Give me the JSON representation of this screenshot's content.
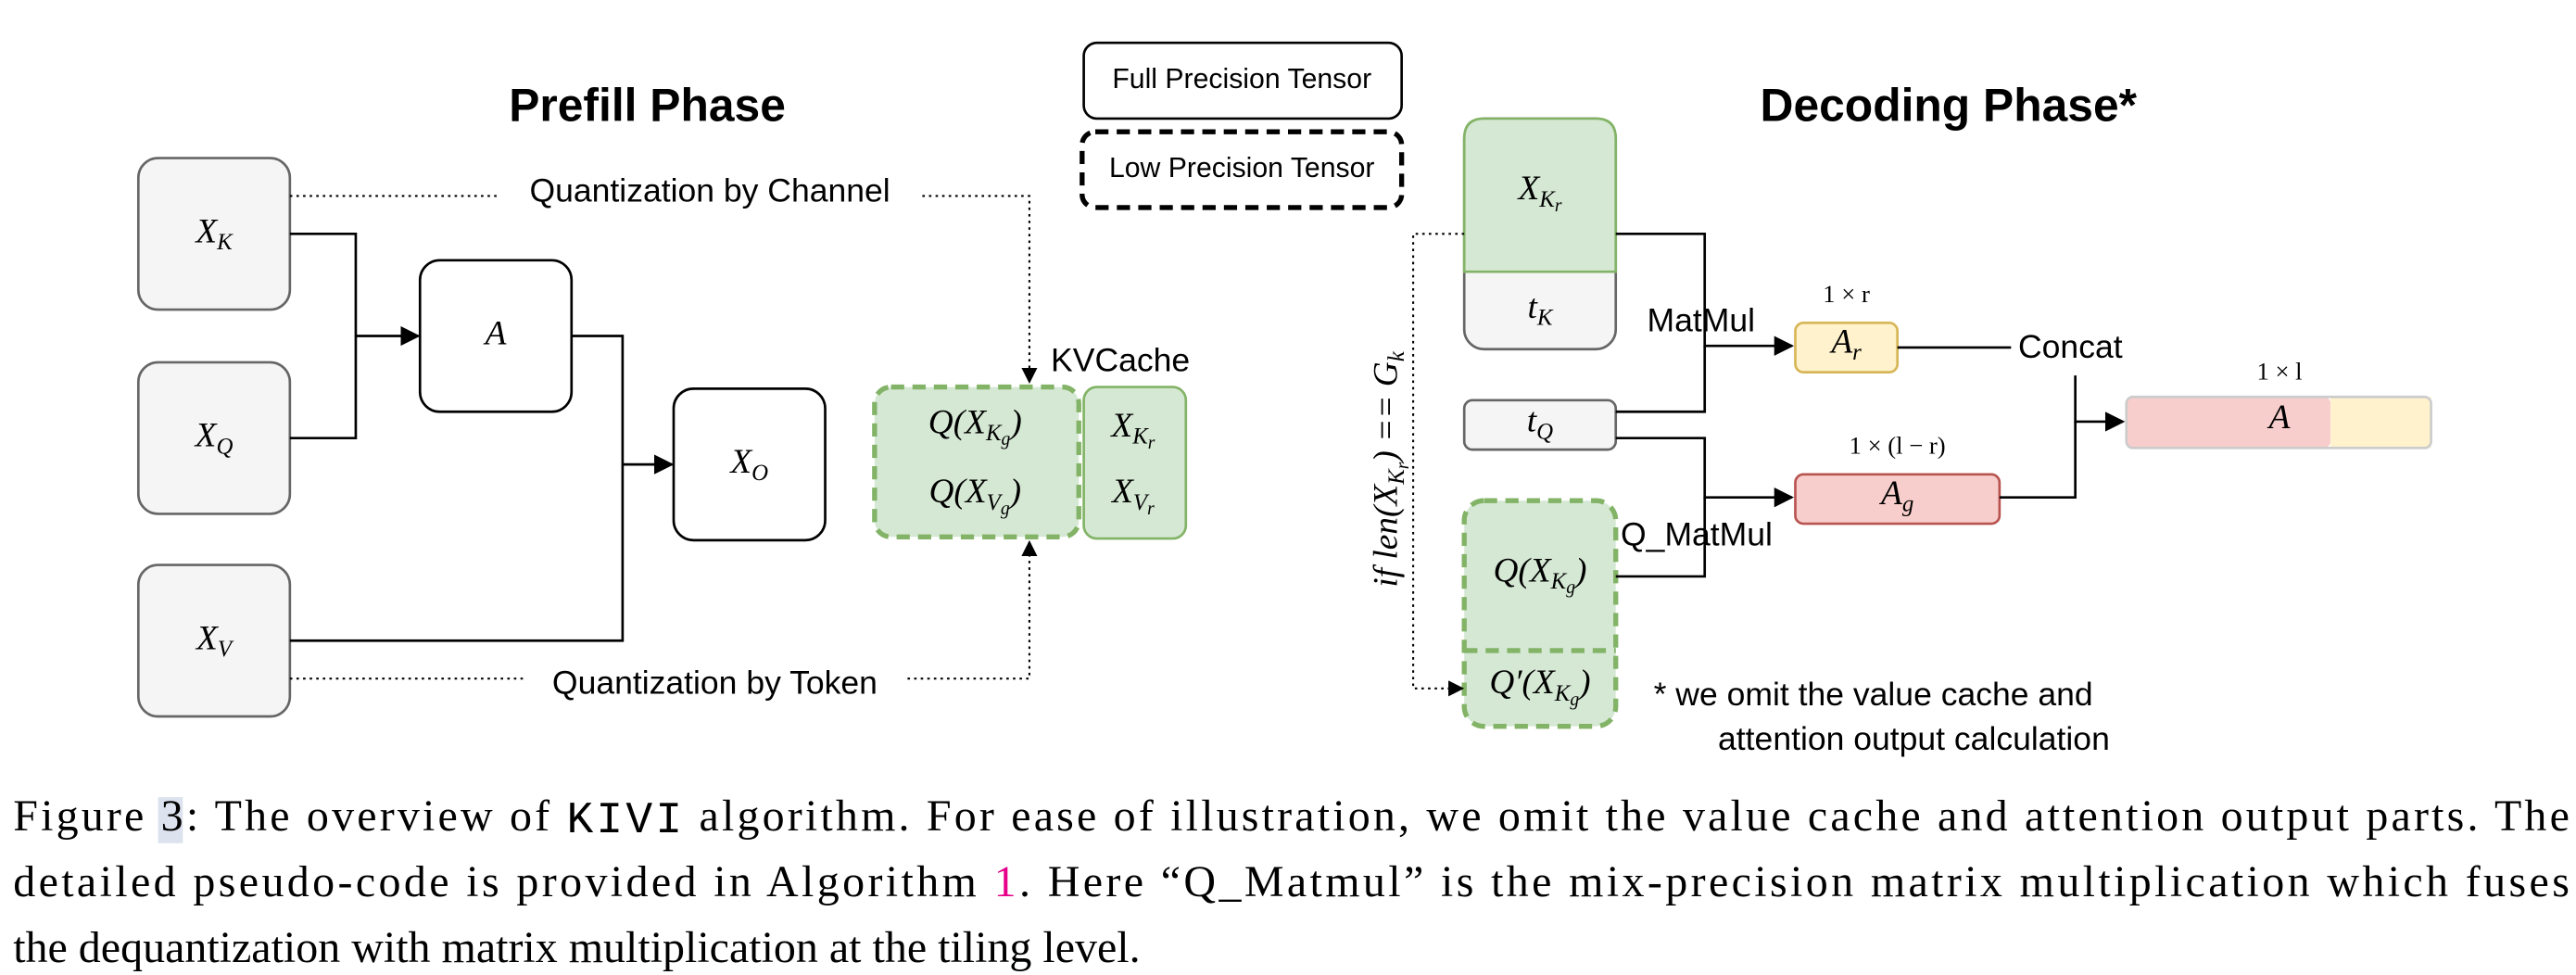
{
  "legend": {
    "full_precision": "Full Precision Tensor",
    "low_precision": "Low Precision Tensor"
  },
  "prefill": {
    "title": "Prefill Phase",
    "channel_label": "Quantization by Channel",
    "token_label": "Quantization by Token",
    "kvcache_label": "KVCache"
  },
  "decoding": {
    "title": "Decoding Phase*",
    "matmul_label": "MatMul",
    "q_matmul_label": "Q_MatMul",
    "concat_label": "Concat",
    "note": [
      "* we omit the value cache and",
      "attention output calculation"
    ]
  },
  "math": {
    "x_k": [
      {
        "text": "X"
      },
      {
        "sub": "K"
      }
    ],
    "x_q": [
      {
        "text": "X"
      },
      {
        "sub": "Q"
      }
    ],
    "x_v": [
      {
        "text": "X"
      },
      {
        "sub": "V"
      }
    ],
    "a_prefill": [
      {
        "text": "A"
      }
    ],
    "x_o": [
      {
        "text": "X"
      },
      {
        "sub": "O"
      }
    ],
    "cache_q_kg": [
      {
        "text": "Q(X"
      },
      {
        "sub": "K"
      },
      {
        "subsub": "g"
      },
      {
        "text": ")"
      }
    ],
    "cache_q_vg": [
      {
        "text": "Q(X"
      },
      {
        "sub": "V"
      },
      {
        "subsub": "g"
      },
      {
        "text": ")"
      }
    ],
    "cache_x_kr": [
      {
        "text": "X"
      },
      {
        "sub": "K"
      },
      {
        "subsub": "r"
      }
    ],
    "cache_x_vr": [
      {
        "text": "X"
      },
      {
        "sub": "V"
      },
      {
        "subsub": "r"
      }
    ],
    "dec_x_kr": [
      {
        "text": "X"
      },
      {
        "sub": "K"
      },
      {
        "subsub": "r"
      }
    ],
    "dec_t_k": [
      {
        "text": "t"
      },
      {
        "sub": "K"
      }
    ],
    "dec_t_q": [
      {
        "text": "t"
      },
      {
        "sub": "Q"
      }
    ],
    "dec_q_kg": [
      {
        "text": "Q(X"
      },
      {
        "sub": "K"
      },
      {
        "subsub": "g"
      },
      {
        "text": ")"
      }
    ],
    "dec_qp_kg": [
      {
        "text": "Q′(X"
      },
      {
        "sub": "K"
      },
      {
        "subsub": "g"
      },
      {
        "text": ")"
      }
    ],
    "a_r": [
      {
        "text": "A"
      },
      {
        "sub": "r"
      }
    ],
    "a_g": [
      {
        "text": "A"
      },
      {
        "sub": "g"
      }
    ],
    "a_out": [
      {
        "text": "A"
      }
    ],
    "condition": [
      {
        "text": "if len(X"
      },
      {
        "sub": "K"
      },
      {
        "subsub": "r"
      },
      {
        "text": ") == G"
      },
      {
        "sub": "k"
      }
    ]
  },
  "shapes": {
    "a_r": "1 × r",
    "a_g": "1 × (l − r)",
    "a_out": "1 × l"
  },
  "caption": {
    "lines": [
      [
        "Figure ",
        "3",
        ": The overview of ",
        "KIVI",
        " algorithm. For ease of illustration, we omit the value cache and attention output parts. The"
      ],
      [
        "detailed pseudo-code is provided in Algorithm ",
        "1",
        ". Here “Q_Matmul” is the mix-precision matrix multiplication which fuses"
      ],
      [
        "the dequantization with matrix multiplication at the tiling level."
      ]
    ]
  }
}
